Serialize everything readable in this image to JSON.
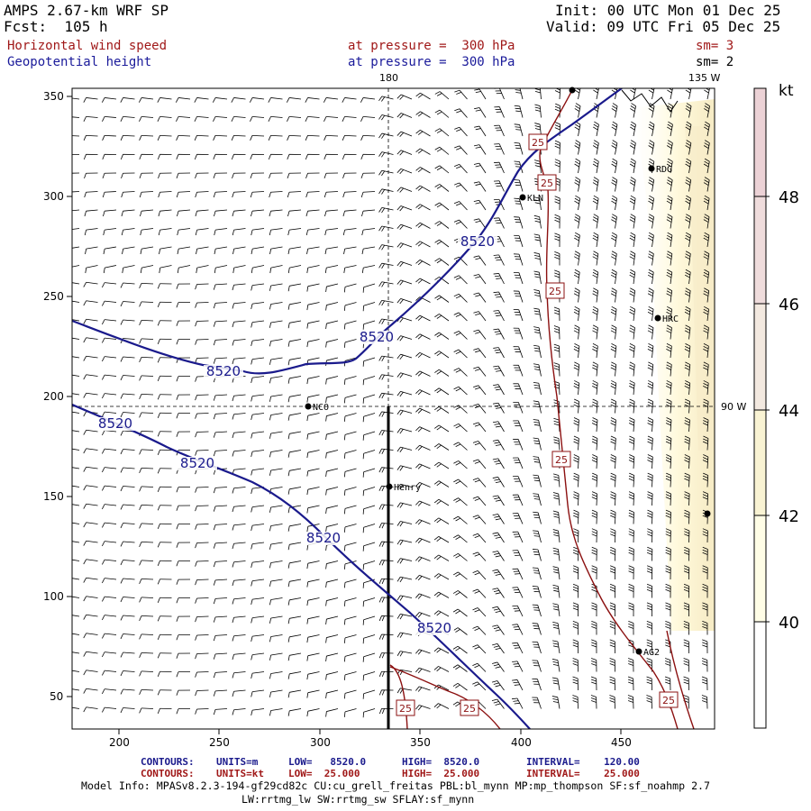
{
  "header": {
    "model": "AMPS 2.67-km WRF SP",
    "forecast": "Fcst:  105 h",
    "init": "Init: 00 UTC Mon 01 Dec 25",
    "valid": "Valid: 09 UTC Fri 05 Dec 25",
    "field1": "Horizontal wind speed",
    "field1_level": "at pressure =  300 hPa",
    "field1_sm": "sm= 3",
    "field2": "Geopotential height",
    "field2_level": "at pressure =  300 hPa",
    "field2_sm": "sm= 2"
  },
  "map": {
    "x_ticks": [
      "200",
      "250",
      "300",
      "350",
      "400",
      "450"
    ],
    "y_ticks": [
      "50",
      "100",
      "150",
      "200",
      "250",
      "300",
      "350"
    ],
    "lon_label_top_180": "180",
    "lon_label_top_135w": "135 W",
    "lon_label_right_90w": "90 W",
    "contour_label_height": "8520",
    "contour_label_wind": "25",
    "stations": [
      "KLN",
      "RDG",
      "HRC",
      "NCO",
      "Henry",
      "AG2"
    ],
    "colors": {
      "height_contour": "#1a1a8c",
      "wind_contour": "#8b1010",
      "barb": "#000000",
      "shade_light": "#fffbe0",
      "shade_mid": "#f7efcc"
    }
  },
  "colorbar": {
    "unit": "kt",
    "ticks": [
      "48",
      "46",
      "44",
      "42",
      "40"
    ],
    "colors": [
      "#ffffff",
      "#fffde6",
      "#f9f3d3",
      "#f3e9e0",
      "#efdcdc",
      "#ecd2d6"
    ]
  },
  "footer": {
    "row1": {
      "label": "CONTOURS:",
      "units": "UNITS=m",
      "low": "LOW=   8520.0",
      "high": "HIGH=  8520.0",
      "interval": "INTERVAL=    120.00"
    },
    "row2": {
      "label": "CONTOURS:",
      "units": "UNITS=kt",
      "low": "LOW=  25.000",
      "high": "HIGH=  25.000",
      "interval": "INTERVAL=    25.000"
    },
    "model_info1": "Model Info: MPASv8.2.3-194-gf29cd82c CU:cu_grell_freitas PBL:bl_mynn MP:mp_thompson SF:sf_noahmp 2.7",
    "model_info2": "LW:rrtmg_lw SW:rrtmg_sw SFLAY:sf_mynn"
  }
}
